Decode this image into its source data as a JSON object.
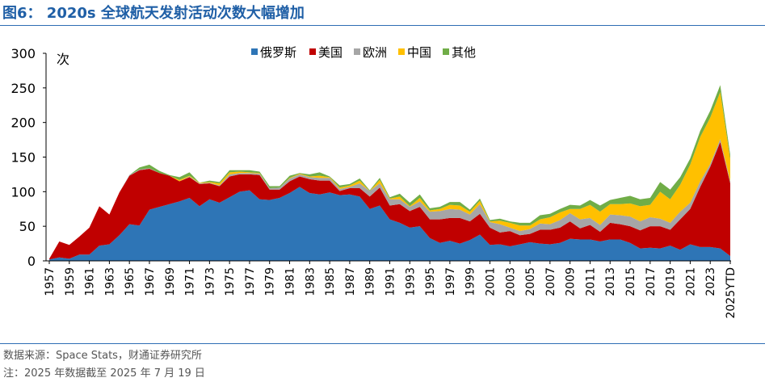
{
  "figure": {
    "title": "图6： 2020s 全球航天发射活动次数大幅增加",
    "source": "数据来源：Space Stats，财通证券研究所",
    "note": "注：2025 年数据截至 2025 年 7 月 19 日"
  },
  "chart_data": {
    "type": "area",
    "stacked": true,
    "unit_label": "次",
    "ylim": [
      0,
      300
    ],
    "yticks": [
      0,
      50,
      100,
      150,
      200,
      250,
      300
    ],
    "legend_position": "top-center",
    "grid": false,
    "x_tick_labels": [
      "1957",
      "1959",
      "1961",
      "1963",
      "1965",
      "1967",
      "1969",
      "1971",
      "1973",
      "1975",
      "1977",
      "1979",
      "1981",
      "1983",
      "1985",
      "1987",
      "1989",
      "1991",
      "1993",
      "1995",
      "1997",
      "1999",
      "2001",
      "2003",
      "2005",
      "2007",
      "2009",
      "2011",
      "2013",
      "2015",
      "2017",
      "2019",
      "2021",
      "2023",
      "2025YTD"
    ],
    "categories": [
      "1957",
      "1958",
      "1959",
      "1960",
      "1961",
      "1962",
      "1963",
      "1964",
      "1965",
      "1966",
      "1967",
      "1968",
      "1969",
      "1970",
      "1971",
      "1972",
      "1973",
      "1974",
      "1975",
      "1976",
      "1977",
      "1978",
      "1979",
      "1980",
      "1981",
      "1982",
      "1983",
      "1984",
      "1985",
      "1986",
      "1987",
      "1988",
      "1989",
      "1990",
      "1991",
      "1992",
      "1993",
      "1994",
      "1995",
      "1996",
      "1997",
      "1998",
      "1999",
      "2000",
      "2001",
      "2002",
      "2003",
      "2004",
      "2005",
      "2006",
      "2007",
      "2008",
      "2009",
      "2010",
      "2011",
      "2012",
      "2013",
      "2014",
      "2015",
      "2016",
      "2017",
      "2018",
      "2019",
      "2020",
      "2021",
      "2022",
      "2023",
      "2024",
      "2025YTD"
    ],
    "series": [
      {
        "name": "俄罗斯",
        "color": "#2e75b6",
        "values": [
          2,
          5,
          3,
          9,
          9,
          22,
          24,
          37,
          53,
          51,
          74,
          78,
          82,
          86,
          91,
          79,
          89,
          84,
          92,
          100,
          102,
          89,
          88,
          91,
          98,
          107,
          98,
          96,
          99,
          95,
          96,
          93,
          75,
          80,
          60,
          55,
          48,
          50,
          33,
          26,
          29,
          25,
          30,
          38,
          23,
          24,
          21,
          24,
          27,
          25,
          24,
          26,
          32,
          31,
          31,
          28,
          31,
          31,
          26,
          18,
          19,
          18,
          22,
          16,
          24,
          20,
          20,
          18,
          7
        ]
      },
      {
        "name": "美国",
        "color": "#c00000",
        "values": [
          1,
          23,
          20,
          26,
          39,
          57,
          43,
          62,
          70,
          80,
          59,
          49,
          41,
          29,
          30,
          32,
          23,
          24,
          30,
          25,
          23,
          35,
          15,
          12,
          17,
          15,
          20,
          20,
          17,
          6,
          9,
          12,
          18,
          26,
          20,
          27,
          24,
          28,
          27,
          34,
          33,
          37,
          27,
          30,
          25,
          17,
          22,
          13,
          12,
          20,
          21,
          22,
          25,
          16,
          21,
          14,
          24,
          22,
          24,
          26,
          31,
          32,
          23,
          44,
          51,
          87,
          116,
          154,
          105
        ]
      },
      {
        "name": "欧洲",
        "color": "#a6a6a6",
        "values": [
          0,
          0,
          0,
          0,
          0,
          0,
          0,
          0,
          1,
          1,
          1,
          0,
          0,
          0,
          1,
          1,
          1,
          1,
          3,
          2,
          2,
          2,
          2,
          3,
          4,
          3,
          3,
          4,
          4,
          3,
          2,
          7,
          8,
          6,
          9,
          7,
          6,
          8,
          11,
          12,
          13,
          12,
          10,
          14,
          8,
          12,
          5,
          6,
          7,
          9,
          8,
          11,
          12,
          13,
          10,
          10,
          12,
          13,
          14,
          13,
          13,
          11,
          10,
          11,
          9,
          8,
          4,
          4,
          3
        ]
      },
      {
        "name": "中国",
        "color": "#ffc000",
        "values": [
          0,
          0,
          0,
          0,
          0,
          0,
          0,
          0,
          0,
          0,
          0,
          0,
          0,
          2,
          1,
          1,
          1,
          3,
          3,
          2,
          1,
          1,
          0,
          0,
          1,
          1,
          1,
          3,
          1,
          2,
          2,
          4,
          0,
          5,
          1,
          4,
          1,
          5,
          2,
          3,
          6,
          6,
          4,
          5,
          1,
          5,
          7,
          8,
          5,
          6,
          10,
          11,
          6,
          15,
          19,
          19,
          15,
          16,
          19,
          22,
          18,
          39,
          34,
          39,
          55,
          64,
          67,
          68,
          32
        ]
      },
      {
        "name": "其他",
        "color": "#70ad47",
        "values": [
          0,
          0,
          0,
          0,
          0,
          0,
          0,
          0,
          0,
          3,
          5,
          3,
          1,
          4,
          5,
          0,
          2,
          2,
          3,
          2,
          3,
          2,
          3,
          2,
          3,
          1,
          3,
          5,
          1,
          3,
          2,
          3,
          1,
          3,
          2,
          4,
          5,
          5,
          3,
          3,
          4,
          5,
          3,
          3,
          2,
          3,
          2,
          4,
          4,
          6,
          5,
          5,
          6,
          5,
          7,
          9,
          6,
          9,
          11,
          10,
          10,
          14,
          14,
          11,
          9,
          9,
          10,
          10,
          6
        ]
      }
    ]
  }
}
